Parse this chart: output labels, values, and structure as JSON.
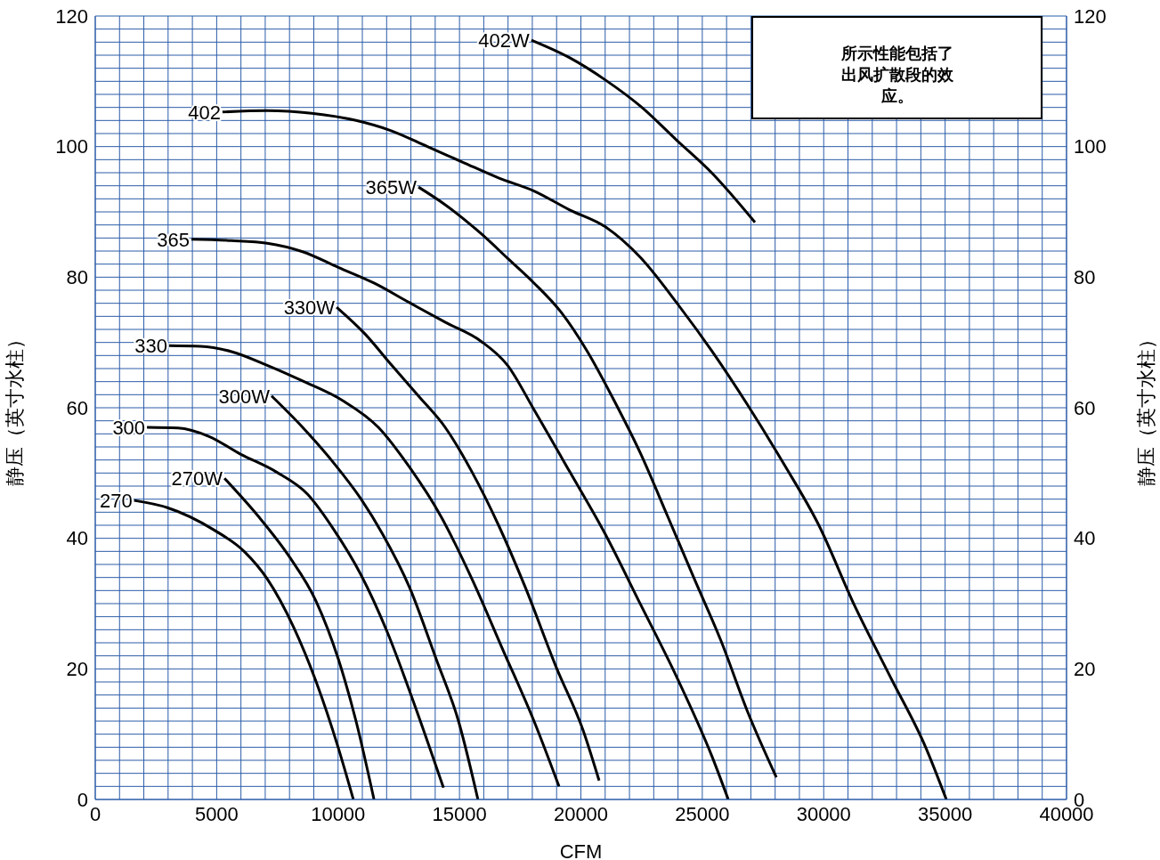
{
  "chart_data": {
    "type": "line",
    "xlabel": "CFM",
    "ylabel": "静压（英寸水柱）",
    "y2label": "静压（英寸水柱）",
    "annotations": [
      "所示性能包括了出风扩散段的效应。"
    ],
    "xlim": [
      0,
      40000
    ],
    "xticks": [
      0,
      {
        "value": 1000,
        "label": null
      },
      {
        "value": 2000,
        "label": null
      },
      {
        "value": 3000,
        "label": null
      },
      {
        "value": 4000,
        "label": null
      },
      5000,
      {
        "value": 6000,
        "label": null
      },
      {
        "value": 7000,
        "label": null
      },
      {
        "value": 8000,
        "label": null
      },
      {
        "value": 9000,
        "label": null
      },
      10000,
      {
        "value": 11000,
        "label": null
      },
      {
        "value": 12000,
        "label": null
      },
      {
        "value": 13000,
        "label": null
      },
      {
        "value": 14000,
        "label": null
      },
      15000,
      {
        "value": 16000,
        "label": null
      },
      {
        "value": 17000,
        "label": null
      },
      {
        "value": 18000,
        "label": null
      },
      {
        "value": 19000,
        "label": null
      },
      20000,
      {
        "value": 21000,
        "label": null
      },
      {
        "value": 22000,
        "label": null
      },
      {
        "value": 23000,
        "label": null
      },
      {
        "value": 24000,
        "label": null
      },
      25000,
      {
        "value": 26000,
        "label": null
      },
      {
        "value": 27000,
        "label": null
      },
      {
        "value": 28000,
        "label": null
      },
      {
        "value": 29000,
        "label": null
      },
      30000,
      {
        "value": 31000,
        "label": null
      },
      {
        "value": 32000,
        "label": null
      },
      {
        "value": 33000,
        "label": null
      },
      {
        "value": 34000,
        "label": null
      },
      35000,
      {
        "value": 36000,
        "label": null
      },
      {
        "value": 37000,
        "label": null
      },
      {
        "value": 38000,
        "label": null
      },
      {
        "value": 39000,
        "label": null
      },
      40000
    ],
    "ylim": [
      0,
      120
    ],
    "yticks": [
      0,
      {
        "value": 2,
        "label": null
      },
      {
        "value": 4,
        "label": null
      },
      {
        "value": 6,
        "label": null
      },
      {
        "value": 8,
        "label": null
      },
      {
        "value": 10,
        "label": null
      },
      {
        "value": 12,
        "label": null
      },
      {
        "value": 14,
        "label": null
      },
      {
        "value": 16,
        "label": null
      },
      {
        "value": 18,
        "label": null
      },
      20,
      {
        "value": 22,
        "label": null
      },
      {
        "value": 24,
        "label": null
      },
      {
        "value": 26,
        "label": null
      },
      {
        "value": 28,
        "label": null
      },
      {
        "value": 30,
        "label": null
      },
      {
        "value": 32,
        "label": null
      },
      {
        "value": 34,
        "label": null
      },
      {
        "value": 36,
        "label": null
      },
      {
        "value": 38,
        "label": null
      },
      40,
      {
        "value": 42,
        "label": null
      },
      {
        "value": 44,
        "label": null
      },
      {
        "value": 46,
        "label": null
      },
      {
        "value": 48,
        "label": null
      },
      {
        "value": 50,
        "label": null
      },
      {
        "value": 52,
        "label": null
      },
      {
        "value": 54,
        "label": null
      },
      {
        "value": 56,
        "label": null
      },
      {
        "value": 58,
        "label": null
      },
      60,
      {
        "value": 62,
        "label": null
      },
      {
        "value": 64,
        "label": null
      },
      {
        "value": 66,
        "label": null
      },
      {
        "value": 68,
        "label": null
      },
      {
        "value": 70,
        "label": null
      },
      {
        "value": 72,
        "label": null
      },
      {
        "value": 74,
        "label": null
      },
      {
        "value": 76,
        "label": null
      },
      {
        "value": 78,
        "label": null
      },
      80,
      {
        "value": 82,
        "label": null
      },
      {
        "value": 84,
        "label": null
      },
      {
        "value": 86,
        "label": null
      },
      {
        "value": 88,
        "label": null
      },
      {
        "value": 90,
        "label": null
      },
      {
        "value": 92,
        "label": null
      },
      {
        "value": 94,
        "label": null
      },
      {
        "value": 96,
        "label": null
      },
      {
        "value": 98,
        "label": null
      },
      100,
      {
        "value": 102,
        "label": null
      },
      {
        "value": 104,
        "label": null
      },
      {
        "value": 106,
        "label": null
      },
      {
        "value": 108,
        "label": null
      },
      {
        "value": 110,
        "label": null
      },
      {
        "value": 112,
        "label": null
      },
      {
        "value": 114,
        "label": null
      },
      {
        "value": 116,
        "label": null
      },
      {
        "value": 118,
        "label": null
      },
      120
    ],
    "y2lim": [
      0,
      120
    ],
    "y2ticks": [
      0,
      20,
      40,
      60,
      80,
      100,
      120
    ],
    "grid": true,
    "series": [
      {
        "name": "270",
        "color": "#000000",
        "x": [
          1600,
          2970,
          4880,
          6160,
          7080,
          8180,
          9090,
          10010,
          10630
        ],
        "values": [
          45.8,
          44.7,
          41.3,
          37.9,
          33.8,
          26.3,
          18.1,
          7.9,
          0
        ]
      },
      {
        "name": "270W",
        "color": "#000000",
        "x": [
          5320,
          6710,
          7990,
          9090,
          10010,
          10740,
          11480
        ],
        "values": [
          49.2,
          43.4,
          37.2,
          30.4,
          21.5,
          12,
          0
        ]
      },
      {
        "name": "300",
        "color": "#000000",
        "x": [
          2130,
          3410,
          4690,
          5980,
          7440,
          8730,
          9830,
          10930,
          12030,
          13130,
          14340
        ],
        "values": [
          57,
          56.9,
          55.6,
          52.9,
          50.2,
          46.8,
          41.3,
          34.5,
          25.6,
          14.7,
          1.8
        ]
      },
      {
        "name": "300W",
        "color": "#000000",
        "x": [
          7260,
          8540,
          9830,
          10930,
          11840,
          12940,
          14040,
          14960,
          15760
        ],
        "values": [
          61.8,
          57,
          51.5,
          46.1,
          40.6,
          32.5,
          21.5,
          12,
          0
        ]
      },
      {
        "name": "330",
        "color": "#000000",
        "x": [
          3040,
          4330,
          5610,
          7080,
          8540,
          10190,
          11660,
          12940,
          14230,
          15510,
          16790,
          18070,
          19100
        ],
        "values": [
          69.5,
          69.4,
          68.6,
          66.5,
          64.1,
          61.1,
          57,
          50.9,
          43.4,
          33.8,
          22.9,
          12,
          2
        ]
      },
      {
        "name": "330W",
        "color": "#000000",
        "x": [
          9940,
          11110,
          12210,
          13310,
          14410,
          15510,
          16610,
          17710,
          18990,
          20090,
          20750
        ],
        "values": [
          75.4,
          71.3,
          66.5,
          61.8,
          57,
          50.2,
          42,
          32.5,
          20.2,
          10.6,
          2.9
        ]
      },
      {
        "name": "365",
        "color": "#000000",
        "x": [
          3960,
          5610,
          7080,
          8540,
          10010,
          11480,
          12940,
          14410,
          15880,
          16980,
          18070,
          19540,
          21010,
          22480,
          23940,
          25410,
          26070
        ],
        "values": [
          85.8,
          85.6,
          85.2,
          83.9,
          81.5,
          79.1,
          76.1,
          73.1,
          70.2,
          66.5,
          59.7,
          50.2,
          40.6,
          29.7,
          18.8,
          6.5,
          0
        ]
      },
      {
        "name": "365W",
        "color": "#000000",
        "x": [
          13310,
          14410,
          15880,
          16980,
          18070,
          19170,
          20270,
          21370,
          22470,
          23570,
          24670,
          25770,
          26870,
          28050
        ],
        "values": [
          93.8,
          91.1,
          86.7,
          82.9,
          79.1,
          74.7,
          68.6,
          61.1,
          52.9,
          43.4,
          33.8,
          24.3,
          13.4,
          3.4
        ]
      },
      {
        "name": "402",
        "color": "#000000",
        "x": [
          5240,
          7080,
          8910,
          10740,
          12210,
          13680,
          15140,
          16610,
          18070,
          19540,
          21010,
          22480,
          23940,
          25410,
          26870,
          28340,
          29800,
          31270,
          32740,
          34210,
          35050
        ],
        "values": [
          105.3,
          105.5,
          105.1,
          104,
          102.4,
          100,
          97.6,
          95.2,
          93.2,
          90.3,
          87.7,
          82.9,
          76.1,
          68.6,
          60.4,
          51.5,
          42,
          29.7,
          18.8,
          7.9,
          0
        ]
      },
      {
        "name": "402W",
        "color": "#000000",
        "x": [
          17960,
          19540,
          21010,
          22480,
          23940,
          25410,
          27170
        ],
        "values": [
          116.3,
          113.6,
          110.2,
          106.1,
          101,
          95.9,
          88.4
        ]
      }
    ]
  }
}
